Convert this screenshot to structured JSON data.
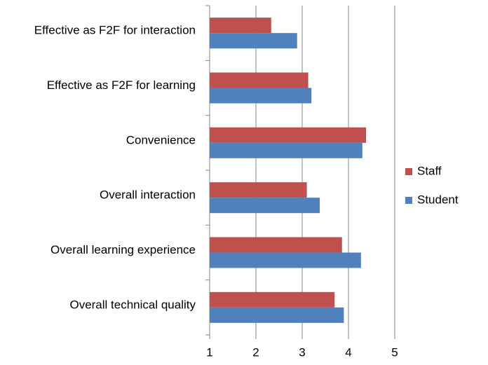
{
  "chart_data": {
    "type": "barh",
    "categories": [
      "Effective as F2F for interaction",
      "Effective as F2F for learning",
      "Convenience",
      "Overall interaction",
      "Overall learning experience",
      "Overall technical quality"
    ],
    "series": [
      {
        "name": "Staff",
        "color": "#c0504d",
        "values": [
          2.33,
          3.13,
          4.38,
          3.1,
          3.86,
          3.7
        ]
      },
      {
        "name": "Student",
        "color": "#4f81bd",
        "values": [
          2.89,
          3.2,
          4.3,
          3.38,
          4.27,
          3.9
        ]
      }
    ],
    "xlim": [
      1,
      5
    ],
    "xticks": [
      1,
      2,
      3,
      4,
      5
    ],
    "grid": true,
    "legend": "right"
  }
}
